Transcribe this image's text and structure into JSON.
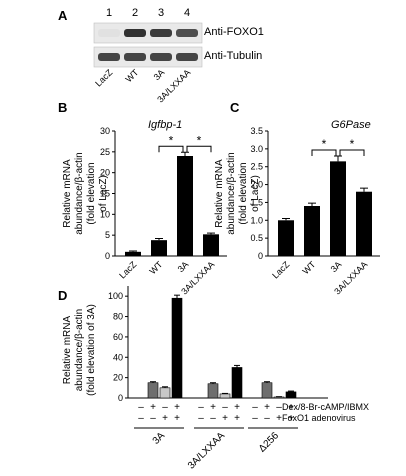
{
  "panels": {
    "A": {
      "letter": "A",
      "lane_numbers": [
        "1",
        "2",
        "3",
        "4"
      ],
      "lane_labels": [
        "LacZ",
        "WT",
        "3A",
        "3A/LXXAA"
      ],
      "blot_labels": [
        "Anti-FOXO1",
        "Anti-Tubulin"
      ],
      "band_intensity": {
        "Anti-FOXO1": [
          0.05,
          0.95,
          0.9,
          0.8
        ],
        "Anti-Tubulin": [
          0.85,
          0.85,
          0.85,
          0.85
        ]
      }
    },
    "B": {
      "letter": "B",
      "title": "Igfbp-1"
    },
    "C": {
      "letter": "C",
      "title": "G6Pase"
    },
    "D": {
      "letter": "D"
    }
  },
  "significance_mark": "*",
  "chart_data": [
    {
      "panel": "B",
      "type": "bar",
      "title": "Igfbp-1",
      "categories": [
        "LacZ",
        "WT",
        "3A",
        "3A/LXXAA"
      ],
      "values": [
        1.0,
        3.8,
        24.0,
        5.2
      ],
      "errors": [
        0.2,
        0.4,
        0.9,
        0.3
      ],
      "ylabel": "Relative mRNA abundance/β-actin (fold elevation of LacZ)",
      "ylabel_lines": [
        "Relative mRNA",
        "abundance/β-actin",
        "(fold elevation",
        "of LacZ)"
      ],
      "yticks": [
        "0",
        "5",
        "10",
        "15",
        "20",
        "25",
        "30"
      ],
      "ylim": [
        0,
        30
      ],
      "color": "#000000",
      "significance": [
        {
          "from": "WT",
          "to": "3A",
          "mark": "*"
        },
        {
          "from": "3A",
          "to": "3A/LXXAA",
          "mark": "*"
        }
      ]
    },
    {
      "panel": "C",
      "type": "bar",
      "title": "G6Pase",
      "categories": [
        "LacZ",
        "WT",
        "3A",
        "3A/LXXAA"
      ],
      "values": [
        1.0,
        1.4,
        2.65,
        1.8
      ],
      "errors": [
        0.05,
        0.08,
        0.15,
        0.1
      ],
      "ylabel": "Relative mRNA abundance/β-actin (fold elevation of LacZ)",
      "ylabel_lines": [
        "Relative mRNA",
        "abundance/β-actin",
        "(fold elevation",
        "of LacZ)"
      ],
      "yticks": [
        "0",
        "0.5",
        "1.0",
        "1.5",
        "2.0",
        "2.5",
        "3.0",
        "3.5"
      ],
      "ylim": [
        0,
        3.5
      ],
      "color": "#000000",
      "significance": [
        {
          "from": "WT",
          "to": "3A",
          "mark": "*"
        },
        {
          "from": "3A",
          "to": "3A/LXXAA",
          "mark": "*"
        }
      ]
    },
    {
      "panel": "D",
      "type": "bar",
      "groups": [
        "3A",
        "3A/LXXAA",
        "Δ256"
      ],
      "conditions": [
        {
          "dex": "–",
          "foxo1": "–",
          "color": "#ffffff"
        },
        {
          "dex": "+",
          "foxo1": "–",
          "color": "#6e6e6e"
        },
        {
          "dex": "–",
          "foxo1": "+",
          "color": "#c8c8c8"
        },
        {
          "dex": "+",
          "foxo1": "+",
          "color": "#000000"
        }
      ],
      "values": [
        [
          0,
          15,
          10,
          98
        ],
        [
          0,
          14,
          4,
          30
        ],
        [
          0,
          15,
          1,
          6
        ]
      ],
      "errors": [
        [
          0,
          1,
          1,
          3
        ],
        [
          0,
          1,
          0.5,
          2
        ],
        [
          0,
          1,
          0.3,
          0.8
        ]
      ],
      "ylabel": "Relative mRNA abundance/β-actin (fold elevation of 3A)",
      "ylabel_lines": [
        "Relative mRNA",
        "abundance/β-actin",
        "(fold elevation of 3A)"
      ],
      "yticks": [
        "0",
        "20",
        "40",
        "60",
        "80",
        "100"
      ],
      "ylim": [
        0,
        110
      ],
      "row_labels": [
        "Dex/8-Br-cAMP/IBMX",
        "FoxO1 adenovirus"
      ]
    }
  ]
}
